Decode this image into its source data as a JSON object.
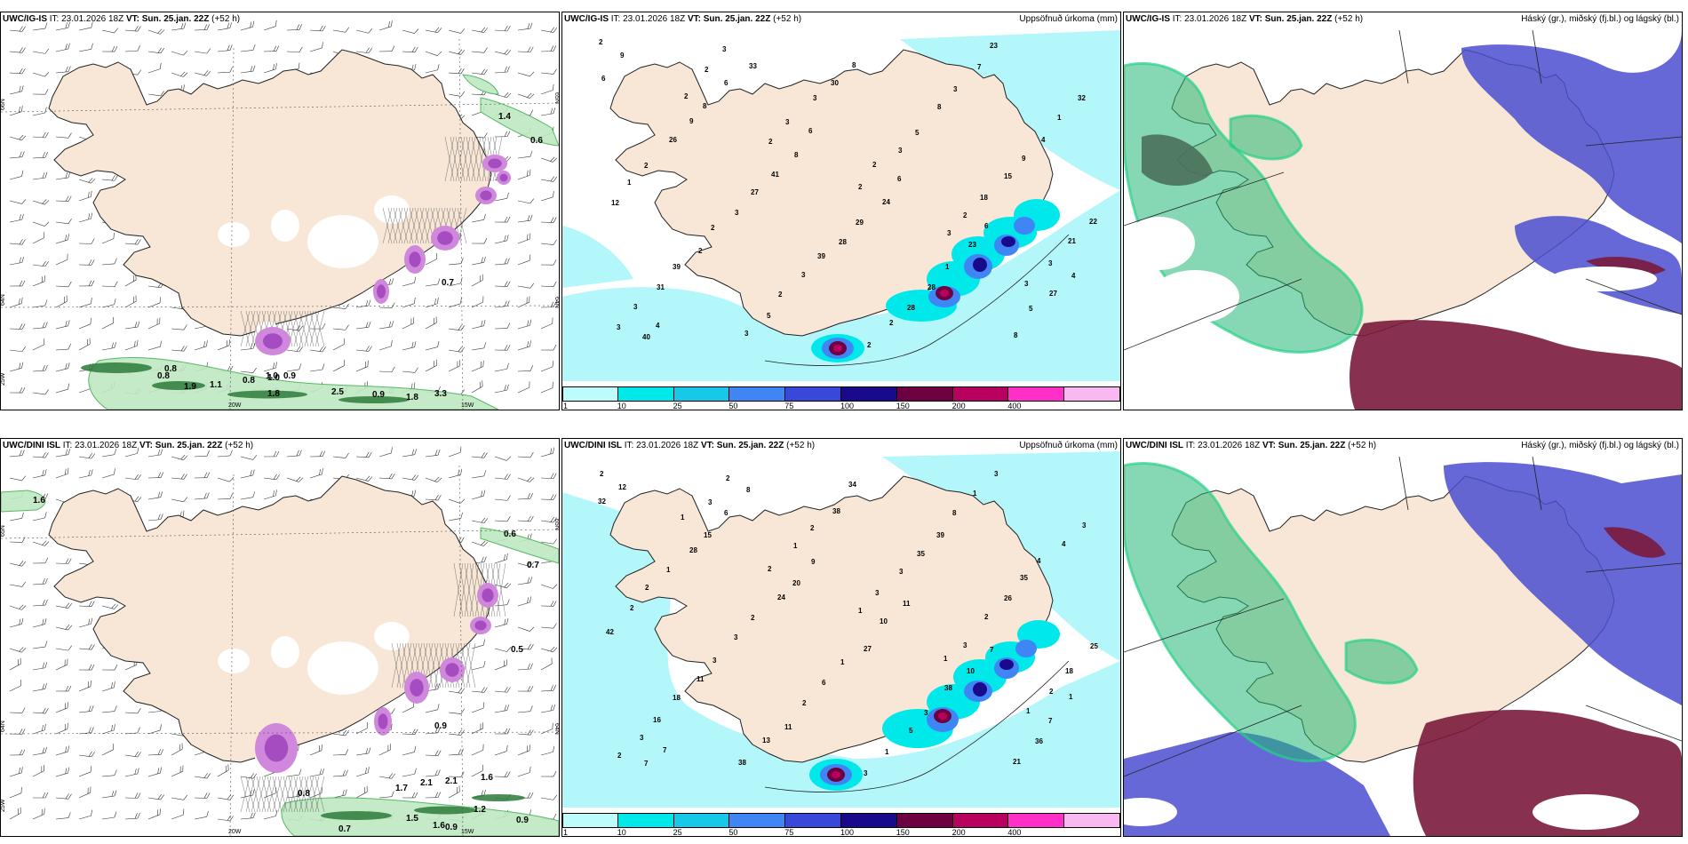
{
  "rows": [
    {
      "model": "UWC/IG-IS",
      "it_label": "IT:",
      "it_value": "23.01.2026 18Z",
      "vt_label": "VT:",
      "vt_value": "Sun. 25.jan. 22Z",
      "lead": "(+52 h)",
      "wind_labels": [
        "1.4",
        "0.6",
        "0.8",
        "0.8",
        "1.1",
        "1.0",
        "1.9",
        "1.8",
        "2.5",
        "0.9",
        "1.8",
        "3.3",
        "0.7",
        "0.8",
        "1.0",
        "0.9"
      ],
      "precip_labels": [
        "2",
        "2",
        "2",
        "2",
        "3",
        "3",
        "3",
        "2",
        "3",
        "2",
        "2",
        "3",
        "3",
        "3",
        "3",
        "3",
        "18",
        "21",
        "31",
        "3",
        "30",
        "5",
        "15",
        "22",
        "39",
        "5",
        "8",
        "8",
        "9",
        "12",
        "2",
        "2",
        "2",
        "3",
        "4",
        "1",
        "2",
        "3",
        "2",
        "7",
        "1",
        "2",
        "3",
        "39",
        "28",
        "23",
        "32",
        "26",
        "27",
        "28",
        "28",
        "8",
        "6",
        "9",
        "41",
        "29",
        "1",
        "5",
        "9",
        "8",
        "8",
        "24",
        "23",
        "27",
        "40",
        "6",
        "6",
        "6",
        "6",
        "4",
        "4",
        "33"
      ],
      "axis_labels": [
        "66N",
        "64N",
        "25W",
        "20W",
        "15W",
        "65N",
        "64N"
      ]
    },
    {
      "model": "UWC/DINI ISL",
      "it_label": "IT:",
      "it_value": "23.01.2026 18Z",
      "vt_label": "VT:",
      "vt_value": "Sun. 25.jan. 22Z",
      "lead": "(+52 h)",
      "wind_labels": [
        "1.6",
        "0.6",
        "0.7",
        "0.5",
        "0.9",
        "1.7",
        "2.1",
        "2.1",
        "1.6",
        "0.9",
        "1.2",
        "0.9",
        "0.7",
        "1.5",
        "1.6",
        "0.8"
      ],
      "precip_labels": [
        "2",
        "1",
        "2",
        "1",
        "1",
        "1",
        "2",
        "3",
        "1",
        "3",
        "3",
        "2",
        "3",
        "2",
        "2",
        "3",
        "2",
        "18",
        "16",
        "38",
        "38",
        "35",
        "26",
        "25",
        "18",
        "13",
        "34",
        "39",
        "35",
        "42",
        "11",
        "11",
        "3",
        "8",
        "4",
        "2",
        "3",
        "2",
        "1",
        "1",
        "4",
        "2",
        "3",
        "6",
        "5",
        "3",
        "3",
        "1",
        "2",
        "1",
        "3",
        "21",
        "32",
        "28",
        "24",
        "27",
        "38",
        "36",
        "12",
        "15",
        "20",
        "10",
        "10",
        "7",
        "7",
        "6",
        "9",
        "11",
        "7",
        "1",
        "7",
        "8"
      ],
      "axis_labels": [
        "65N",
        "64N",
        "25W",
        "20W",
        "15W",
        "65N",
        "64N"
      ]
    }
  ],
  "precip_panel_title": "Uppsöfnuð úrkoma (mm)",
  "cloud_panel_title": "Háský (gr.), miðský (fj.bl.) og lágský (bl.)",
  "colorbar": {
    "ticks": [
      "1",
      "10",
      "25",
      "50",
      "75",
      "100",
      "150",
      "200",
      "400"
    ],
    "colors": [
      "#bdfcfb",
      "#00e8ea",
      "#18c8e8",
      "#3f86f4",
      "#3848d8",
      "#180a8a",
      "#6c0040",
      "#b8005e",
      "#ff30c8",
      "#f8b8f0"
    ]
  },
  "colors": {
    "land": "#f8e7d6",
    "precip_base": "#b3f7fb",
    "cloud_high": "#22b877",
    "cloud_mid": "#4a4dcf",
    "cloud_low": "#7a1a3c"
  }
}
